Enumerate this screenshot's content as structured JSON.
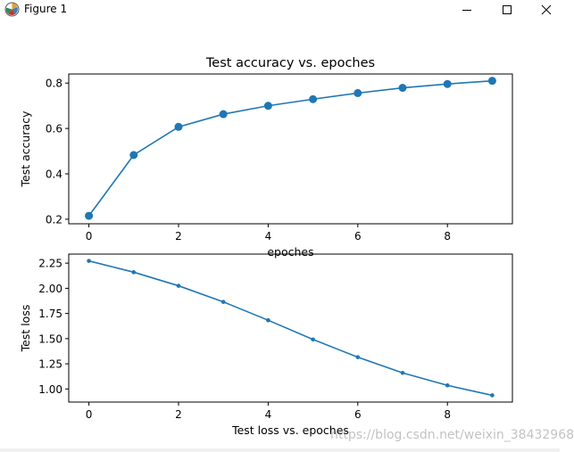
{
  "window": {
    "title": "Figure 1",
    "minimize_label": "—",
    "maximize_label": "☐",
    "close_label": "✕"
  },
  "colors": {
    "line": "#1f77b4",
    "axes": "#000000",
    "background": "#ffffff"
  },
  "watermark": "https://blog.csdn.net/weixin_38432968",
  "chart_data": [
    {
      "type": "line",
      "title": "Test accuracy vs. epoches",
      "xlabel": "epoches",
      "ylabel": "Test accuracy",
      "marker": "large-circle",
      "x": [
        0,
        1,
        2,
        3,
        4,
        5,
        6,
        7,
        8,
        9
      ],
      "series": [
        {
          "values": [
            0.215,
            0.483,
            0.607,
            0.663,
            0.7,
            0.729,
            0.756,
            0.779,
            0.796,
            0.81
          ]
        }
      ],
      "xlim": [
        -0.45,
        9.45
      ],
      "ylim": [
        0.18,
        0.84
      ],
      "xticks": [
        0,
        2,
        4,
        6,
        8
      ],
      "yticks": [
        0.2,
        0.4,
        0.6,
        0.8
      ],
      "xtick_labels": [
        "0",
        "2",
        "4",
        "6",
        "8"
      ],
      "ytick_labels": [
        "0.2",
        "0.4",
        "0.6",
        "0.8"
      ],
      "grid": false
    },
    {
      "type": "line",
      "title": "",
      "xlabel": "Test loss vs. epoches",
      "ylabel": "Test loss",
      "marker": "small-dot",
      "x": [
        0,
        1,
        2,
        3,
        4,
        5,
        6,
        7,
        8,
        9
      ],
      "series": [
        {
          "values": [
            2.272,
            2.16,
            2.025,
            1.865,
            1.683,
            1.492,
            1.316,
            1.16,
            1.036,
            0.937
          ]
        }
      ],
      "xlim": [
        -0.45,
        9.45
      ],
      "ylim": [
        0.87,
        2.34
      ],
      "xticks": [
        0,
        2,
        4,
        6,
        8
      ],
      "yticks": [
        1.0,
        1.25,
        1.5,
        1.75,
        2.0,
        2.25
      ],
      "xtick_labels": [
        "0",
        "2",
        "4",
        "6",
        "8"
      ],
      "ytick_labels": [
        "1.00",
        "1.25",
        "1.50",
        "1.75",
        "2.00",
        "2.25"
      ],
      "grid": false
    }
  ]
}
